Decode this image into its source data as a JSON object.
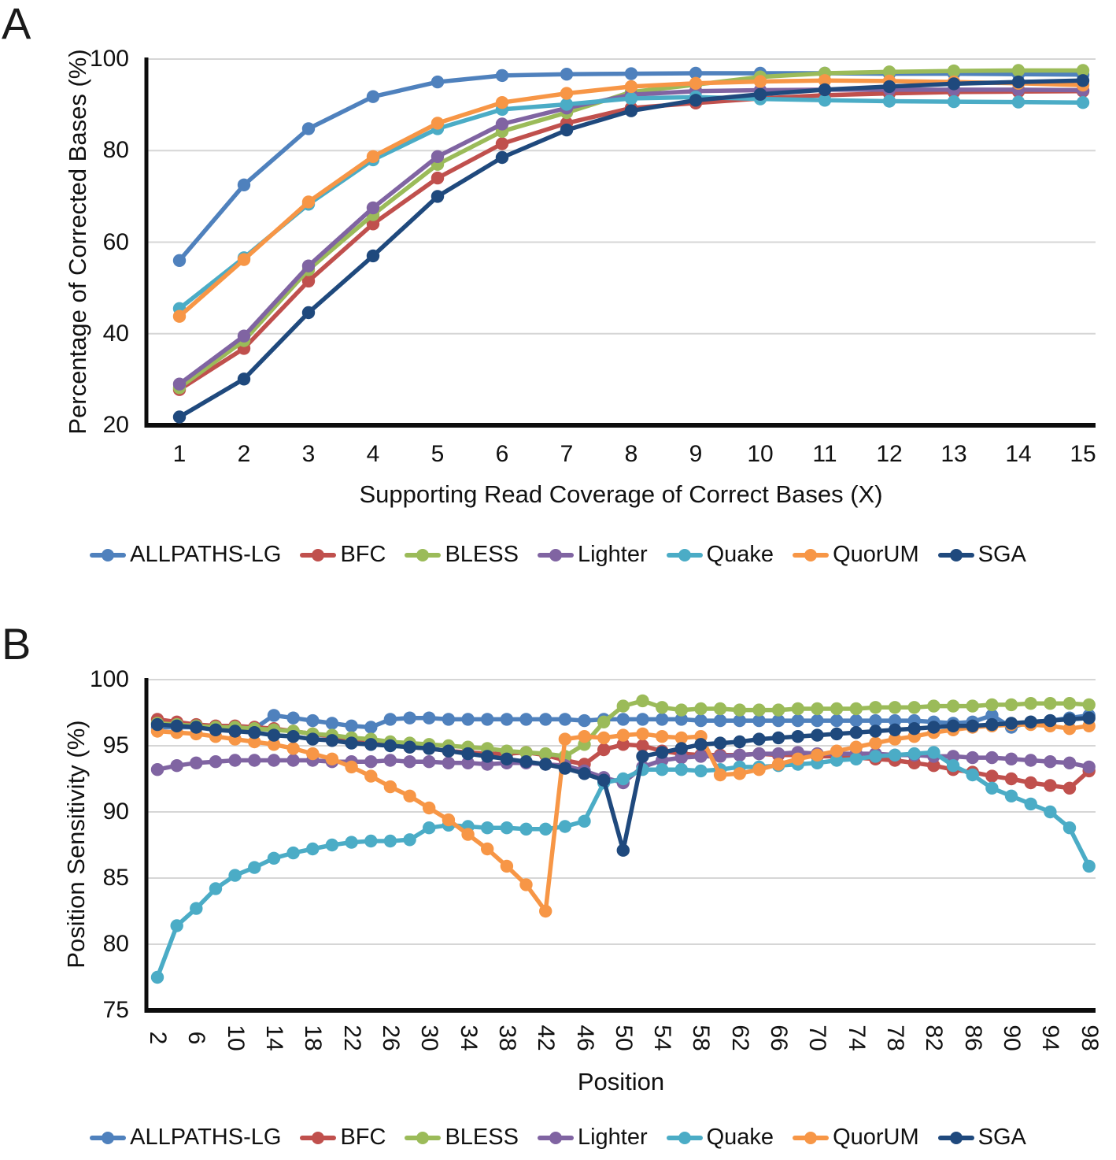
{
  "panels": [
    "A",
    "B"
  ],
  "legend_labels": [
    "ALLPATHS-LG",
    "BFC",
    "BLESS",
    "Lighter",
    "Quake",
    "QuorUM",
    "SGA"
  ],
  "colors": {
    "allpaths_lg": "#4F81BD",
    "bfc": "#C0504D",
    "bless": "#9BBB59",
    "lighter": "#8064A2",
    "quake": "#4BACC6",
    "quorum": "#F79646",
    "sga": "#1F497D",
    "gridline": "#D6D6D6",
    "axis": "#0D0D0D"
  },
  "chart_data": [
    {
      "id": "A",
      "type": "line",
      "title": "",
      "xlabel": "Supporting Read Coverage of Correct Bases (X)",
      "ylabel": "Percentage of Corrected Bases (%)",
      "ylim": [
        20,
        100
      ],
      "y_ticks": [
        20,
        40,
        60,
        80,
        100
      ],
      "grid": "horizontal",
      "marker": "circle",
      "legend_position": "bottom",
      "x": [
        1,
        2,
        3,
        4,
        5,
        6,
        7,
        8,
        9,
        10,
        11,
        12,
        13,
        14,
        15
      ],
      "x_tick_labels": [
        1,
        2,
        3,
        4,
        5,
        6,
        7,
        8,
        9,
        10,
        11,
        12,
        13,
        14,
        15
      ],
      "series": [
        {
          "name": "ALLPATHS-LG",
          "color": "#4F81BD",
          "values": [
            56.0,
            72.5,
            84.8,
            91.8,
            95.0,
            96.4,
            96.7,
            96.8,
            96.9,
            96.9,
            96.9,
            96.8,
            96.8,
            96.7,
            96.6
          ]
        },
        {
          "name": "BFC",
          "color": "#C0504D",
          "values": [
            27.8,
            36.8,
            51.5,
            64.0,
            74.0,
            81.5,
            86.0,
            89.3,
            90.4,
            91.4,
            92.1,
            92.5,
            92.8,
            92.9,
            93.0
          ]
        },
        {
          "name": "BLESS",
          "color": "#9BBB59",
          "values": [
            28.2,
            38.5,
            54.0,
            66.0,
            77.0,
            84.2,
            88.3,
            92.8,
            94.4,
            96.1,
            96.9,
            97.2,
            97.4,
            97.5,
            97.5
          ]
        },
        {
          "name": "Lighter",
          "color": "#8064A2",
          "values": [
            29.0,
            39.5,
            54.8,
            67.5,
            78.7,
            85.8,
            89.3,
            92.2,
            93.0,
            93.2,
            93.3,
            93.3,
            93.3,
            93.3,
            93.2
          ]
        },
        {
          "name": "Quake",
          "color": "#4BACC6",
          "values": [
            45.5,
            56.6,
            68.3,
            78.0,
            84.8,
            89.0,
            90.1,
            91.4,
            91.7,
            91.3,
            91.0,
            90.8,
            90.7,
            90.6,
            90.5
          ]
        },
        {
          "name": "QuorUM",
          "color": "#F79646",
          "values": [
            43.8,
            56.2,
            68.8,
            78.7,
            86.0,
            90.5,
            92.5,
            94.0,
            94.7,
            95.1,
            95.3,
            95.2,
            95.0,
            94.7,
            94.3
          ]
        },
        {
          "name": "SGA",
          "color": "#1F497D",
          "values": [
            21.8,
            30.1,
            44.6,
            57.0,
            70.0,
            78.5,
            84.5,
            88.7,
            91.0,
            92.3,
            93.3,
            94.0,
            94.6,
            95.0,
            95.3
          ]
        }
      ]
    },
    {
      "id": "B",
      "type": "line",
      "title": "",
      "xlabel": "Position",
      "ylabel": "Position Sensitivity (%)",
      "ylim": [
        75,
        100
      ],
      "y_ticks": [
        75,
        80,
        85,
        90,
        95,
        100
      ],
      "grid": "horizontal",
      "marker": "circle",
      "legend_position": "bottom",
      "x": [
        2,
        4,
        6,
        8,
        10,
        12,
        14,
        16,
        18,
        20,
        22,
        24,
        26,
        28,
        30,
        32,
        34,
        36,
        38,
        40,
        42,
        44,
        46,
        48,
        50,
        52,
        54,
        56,
        58,
        60,
        62,
        64,
        66,
        68,
        70,
        72,
        74,
        76,
        78,
        80,
        82,
        84,
        86,
        88,
        90,
        92,
        94,
        96,
        98
      ],
      "x_tick_labels": [
        2,
        6,
        10,
        14,
        18,
        22,
        26,
        30,
        34,
        38,
        42,
        46,
        50,
        54,
        58,
        62,
        66,
        70,
        74,
        78,
        82,
        86,
        90,
        94,
        98
      ],
      "series": [
        {
          "name": "ALLPATHS-LG",
          "color": "#4F81BD",
          "values": [
            96.4,
            96.4,
            96.4,
            96.4,
            96.4,
            96.3,
            97.3,
            97.1,
            96.9,
            96.7,
            96.5,
            96.4,
            97.0,
            97.1,
            97.1,
            97.0,
            97.0,
            97.0,
            97.0,
            97.0,
            97.0,
            97.0,
            96.9,
            97.0,
            97.0,
            97.0,
            97.0,
            97.0,
            96.9,
            96.9,
            96.9,
            96.9,
            96.9,
            96.9,
            96.9,
            96.9,
            96.9,
            96.9,
            96.9,
            96.9,
            96.8,
            96.7,
            96.8,
            97.3,
            96.4,
            96.8,
            96.9,
            97.1,
            97.3
          ]
        },
        {
          "name": "BFC",
          "color": "#C0504D",
          "values": [
            97.0,
            96.8,
            96.6,
            96.5,
            96.5,
            96.4,
            96.3,
            96.1,
            95.9,
            95.7,
            95.5,
            95.3,
            95.1,
            94.9,
            94.8,
            94.6,
            94.5,
            94.4,
            94.4,
            94.5,
            94.3,
            93.9,
            93.6,
            94.7,
            95.1,
            95.0,
            94.6,
            94.4,
            94.3,
            94.3,
            94.3,
            94.4,
            94.3,
            94.3,
            94.2,
            94.2,
            94.1,
            94.0,
            93.9,
            93.7,
            93.5,
            93.2,
            93.0,
            92.7,
            92.5,
            92.2,
            92.0,
            91.8,
            93.1
          ]
        },
        {
          "name": "BLESS",
          "color": "#9BBB59",
          "values": [
            96.7,
            96.6,
            96.5,
            96.4,
            96.4,
            96.3,
            96.2,
            96.1,
            95.9,
            95.8,
            95.6,
            95.5,
            95.3,
            95.2,
            95.1,
            95.0,
            94.9,
            94.8,
            94.6,
            94.5,
            94.4,
            94.2,
            95.1,
            96.8,
            98.0,
            98.4,
            97.9,
            97.7,
            97.8,
            97.8,
            97.7,
            97.7,
            97.7,
            97.8,
            97.8,
            97.8,
            97.8,
            97.9,
            97.9,
            97.9,
            98.0,
            98.0,
            98.0,
            98.1,
            98.1,
            98.2,
            98.2,
            98.2,
            98.1
          ]
        },
        {
          "name": "Lighter",
          "color": "#8064A2",
          "values": [
            93.2,
            93.5,
            93.7,
            93.8,
            93.9,
            93.9,
            93.9,
            93.9,
            93.9,
            93.8,
            93.8,
            93.8,
            93.9,
            93.8,
            93.8,
            93.7,
            93.7,
            93.6,
            93.7,
            93.7,
            93.6,
            93.5,
            93.1,
            92.6,
            92.2,
            93.4,
            93.9,
            94.1,
            94.2,
            94.2,
            94.3,
            94.4,
            94.4,
            94.5,
            94.4,
            94.4,
            94.4,
            94.4,
            94.3,
            94.3,
            94.2,
            94.2,
            94.1,
            94.1,
            94.0,
            93.9,
            93.8,
            93.7,
            93.4
          ]
        },
        {
          "name": "Quake",
          "color": "#4BACC6",
          "values": [
            77.5,
            81.4,
            82.7,
            84.2,
            85.2,
            85.8,
            86.5,
            86.9,
            87.2,
            87.5,
            87.7,
            87.8,
            87.8,
            87.9,
            88.8,
            89.0,
            88.9,
            88.8,
            88.8,
            88.7,
            88.7,
            88.9,
            89.3,
            92.2,
            92.5,
            93.2,
            93.2,
            93.2,
            93.1,
            93.2,
            93.4,
            93.4,
            93.5,
            93.6,
            93.7,
            93.9,
            94.0,
            94.2,
            94.3,
            94.4,
            94.5,
            93.5,
            92.8,
            91.8,
            91.2,
            90.6,
            90.0,
            88.8,
            85.9
          ]
        },
        {
          "name": "QuorUM",
          "color": "#F79646",
          "values": [
            96.1,
            96.0,
            95.9,
            95.7,
            95.5,
            95.3,
            95.1,
            94.8,
            94.4,
            94.0,
            93.4,
            92.7,
            91.9,
            91.2,
            90.3,
            89.4,
            88.3,
            87.2,
            85.9,
            84.5,
            82.5,
            95.5,
            95.7,
            95.6,
            95.8,
            95.9,
            95.7,
            95.6,
            95.7,
            92.8,
            92.9,
            93.2,
            93.6,
            94.0,
            94.3,
            94.6,
            94.9,
            95.2,
            95.5,
            95.7,
            96.0,
            96.2,
            96.4,
            96.5,
            96.6,
            96.6,
            96.5,
            96.3,
            96.5
          ]
        },
        {
          "name": "SGA",
          "color": "#1F497D",
          "values": [
            96.6,
            96.5,
            96.4,
            96.2,
            96.1,
            96.0,
            95.8,
            95.7,
            95.5,
            95.4,
            95.2,
            95.1,
            95.0,
            94.9,
            94.8,
            94.6,
            94.4,
            94.2,
            94.0,
            93.8,
            93.6,
            93.3,
            92.9,
            92.4,
            87.1,
            94.2,
            94.5,
            94.8,
            95.1,
            95.2,
            95.3,
            95.5,
            95.6,
            95.7,
            95.8,
            95.9,
            96.0,
            96.1,
            96.2,
            96.3,
            96.4,
            96.5,
            96.5,
            96.6,
            96.7,
            96.8,
            96.9,
            97.0,
            97.1
          ]
        }
      ]
    }
  ]
}
